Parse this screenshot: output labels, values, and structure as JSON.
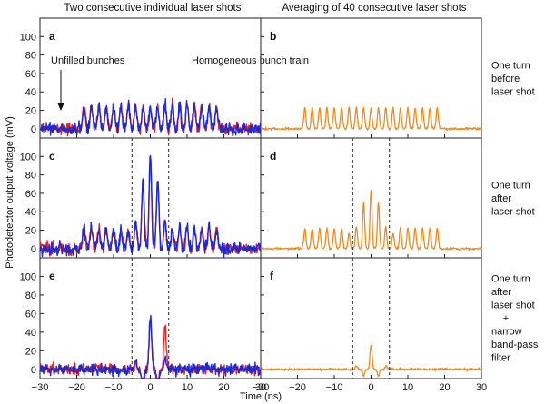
{
  "chart_data": {
    "type": "line",
    "column_titles": [
      "Two consecutive individual laser shots",
      "Averaging of 40 consecutive laser shots"
    ],
    "ylabel": "Photodetector output voltage (mV)",
    "xlabel": "Time (ns)",
    "xlim": [
      -30,
      30
    ],
    "ylim": [
      -10,
      120
    ],
    "x_ticks": [
      "−30",
      "−20",
      "−10",
      "0",
      "10",
      "20",
      "30"
    ],
    "x_tick_values": [
      -30,
      -20,
      -10,
      0,
      10,
      20,
      30
    ],
    "y_ticks": [
      "0",
      "20",
      "40",
      "60",
      "80",
      "100"
    ],
    "y_tick_values": [
      0,
      20,
      40,
      60,
      80,
      100
    ],
    "row_labels": [
      [
        "One turn",
        "before",
        "laser shot"
      ],
      [
        "One turn",
        "after",
        "laser shot"
      ],
      [
        "One turn",
        "after",
        "laser shot",
        "+",
        "narrow",
        "band-pass",
        "filter"
      ]
    ],
    "panels": [
      {
        "letter": "a",
        "row": 0,
        "col": 0,
        "kind": "single",
        "envelope": "flat",
        "base": 25,
        "gauss_amp": 0,
        "gauss_sigma": 5,
        "noise": 5,
        "markers": []
      },
      {
        "letter": "b",
        "row": 0,
        "col": 1,
        "kind": "avg",
        "envelope": "flat",
        "base": 23,
        "gauss_amp": 0,
        "gauss_sigma": 5,
        "noise": 1,
        "markers": []
      },
      {
        "letter": "c",
        "row": 1,
        "col": 0,
        "kind": "single",
        "envelope": "modulated",
        "base": 22,
        "gauss_amp": 78,
        "gauss_sigma": 2.2,
        "noise": 5,
        "markers": [
          -5,
          5
        ]
      },
      {
        "letter": "d",
        "row": 1,
        "col": 1,
        "kind": "avg",
        "envelope": "modulated",
        "base": 22,
        "gauss_amp": 42,
        "gauss_sigma": 2.2,
        "noise": 1,
        "markers": [
          -5,
          5
        ]
      },
      {
        "letter": "e",
        "row": 2,
        "col": 0,
        "kind": "single",
        "envelope": "filtered",
        "base": 0,
        "gauss_amp": 55,
        "gauss_sigma": 2.0,
        "noise": 4,
        "markers": [
          -5,
          5
        ]
      },
      {
        "letter": "f",
        "row": 2,
        "col": 1,
        "kind": "avg",
        "envelope": "filtered",
        "base": 0,
        "gauss_amp": 27,
        "gauss_sigma": 2.0,
        "noise": 1,
        "markers": [
          -5,
          5
        ]
      }
    ],
    "bunch_train": {
      "start": -18,
      "end": 18,
      "spacing": 2
    },
    "series": [
      {
        "name": "Laser shot 1",
        "color": "#e8201c",
        "panels": [
          "a",
          "c",
          "e"
        ]
      },
      {
        "name": "Laser shot 2",
        "color": "#1c2ad6",
        "panels": [
          "a",
          "c",
          "e"
        ]
      },
      {
        "name": "Average of 40 shots",
        "color": "#f28a1a",
        "panels": [
          "b",
          "d",
          "f"
        ]
      }
    ],
    "annotations": [
      {
        "panel": "a",
        "text": "Unfilled bunches",
        "arrow_x": -24
      },
      {
        "panel": "b",
        "text": "Homogeneous bunch train"
      }
    ]
  }
}
